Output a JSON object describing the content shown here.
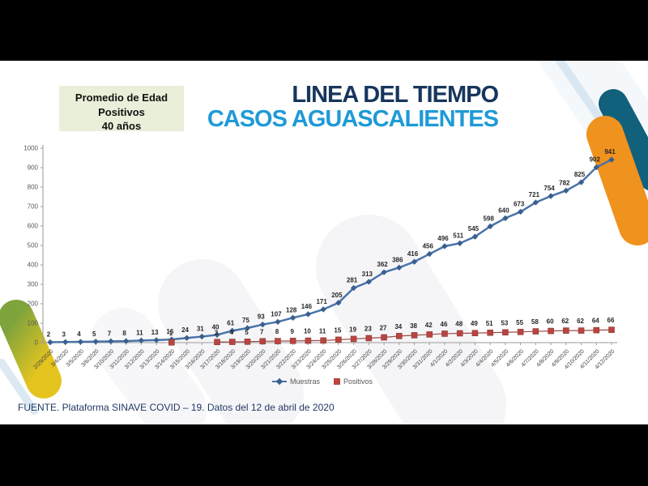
{
  "info_box": {
    "lines": [
      "Promedio de Edad",
      "Positivos",
      "40 años"
    ],
    "bg": "#e9efd9"
  },
  "title": {
    "line1": "LINEA DEL TIEMPO",
    "line2": "CASOS AGUASCALIENTES",
    "line1_color": "#17365d",
    "line2_color": "#1f9ad6"
  },
  "source": "FUENTE. Plataforma SINAVE COVID – 19. Datos del 12 de abril de 2020",
  "colors": {
    "navy": "#17365d",
    "bright_blue": "#1f9ad6",
    "orange": "#f0921e",
    "teal": "#11607c",
    "yellow": "#e5c420",
    "green": "#7fa43c",
    "muestras_line": "#4a74a8",
    "muestras_marker": "#3a5f8e",
    "positivos_line": "#9e4a45",
    "positivos_marker": "#b84540",
    "axis": "#9a9a9a",
    "watermark": "#ededf2",
    "pale_ribbon": "#d9e7f2"
  },
  "chart_data": {
    "type": "line",
    "title": "",
    "xlabel": "",
    "ylabel": "",
    "ylim": [
      0,
      1000
    ],
    "ytick_interval": 100,
    "grid": false,
    "legend_position": "bottom-center",
    "x": [
      "2/29/2020",
      "3/4/2020",
      "3/5/2020",
      "3/6/2020",
      "3/10/2020",
      "3/11/2020",
      "3/12/2020",
      "3/13/2020",
      "3/14/2020",
      "3/15/2020",
      "3/16/2020",
      "3/17/2020",
      "3/18/2020",
      "3/19/2020",
      "3/20/2020",
      "3/21/2020",
      "3/22/2020",
      "3/23/2020",
      "3/24/2020",
      "3/25/2020",
      "3/26/2020",
      "3/27/2020",
      "3/28/2020",
      "3/29/2020",
      "3/30/2020",
      "3/31/2020",
      "4/1/2020",
      "4/2/2020",
      "4/3/2020",
      "4/4/2020",
      "4/5/2020",
      "4/6/2020",
      "4/7/2020",
      "4/8/2020",
      "4/9/2020",
      "4/10/2020",
      "4/11/2020",
      "4/12/2020"
    ],
    "series": [
      {
        "name": "Muestras",
        "marker": "diamond",
        "values": [
          2,
          3,
          4,
          5,
          7,
          8,
          11,
          13,
          16,
          24,
          31,
          40,
          61,
          75,
          93,
          107,
          128,
          146,
          171,
          205,
          281,
          313,
          362,
          386,
          416,
          456,
          496,
          511,
          545,
          598,
          640,
          673,
          721,
          754,
          782,
          825,
          902,
          941
        ]
      },
      {
        "name": "Positivos",
        "marker": "square",
        "values": [
          null,
          null,
          null,
          null,
          null,
          null,
          null,
          null,
          1,
          null,
          null,
          3,
          4,
          5,
          7,
          8,
          9,
          10,
          11,
          15,
          19,
          23,
          27,
          34,
          38,
          42,
          46,
          48,
          49,
          51,
          53,
          55,
          58,
          60,
          62,
          62,
          64,
          66
        ]
      }
    ]
  }
}
